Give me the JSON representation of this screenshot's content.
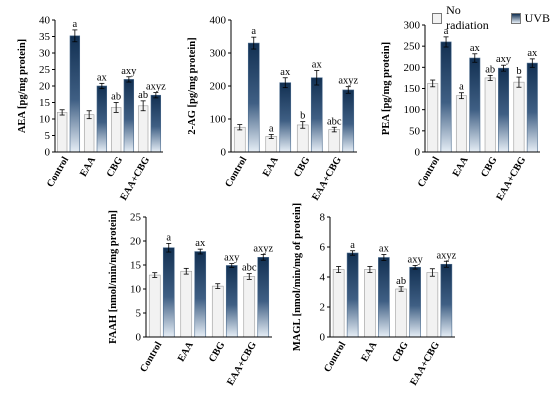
{
  "legend": {
    "items": [
      {
        "label": "No radiation",
        "color": "#f2f2f2"
      },
      {
        "label": "UVB",
        "color": "#1f3a5f"
      }
    ]
  },
  "colors": {
    "no_radiation": "#f2f2f2",
    "uvb_top": "#123052",
    "uvb_bottom": "#e6eef6",
    "axis": "#000000"
  },
  "chart_data": [
    {
      "type": "bar",
      "ylabel": "AEA [pg/mg protein]",
      "categories": [
        "Control",
        "EAA",
        "CBG",
        "EAA+CBG"
      ],
      "ylim": [
        0,
        40
      ],
      "yticks": [
        0,
        5,
        10,
        15,
        20,
        25,
        30,
        35,
        40
      ],
      "series": [
        {
          "name": "No radiation",
          "values": [
            12,
            11.3,
            13.5,
            14
          ],
          "errors": [
            0.8,
            1.2,
            1.5,
            1.5
          ],
          "labels": [
            "",
            "",
            "ab",
            "ab"
          ]
        },
        {
          "name": "UVB",
          "values": [
            35.2,
            20,
            22,
            17.2
          ],
          "errors": [
            1.8,
            0.8,
            0.8,
            0.8
          ],
          "labels": [
            "a",
            "ax",
            "axy",
            "axyz"
          ]
        }
      ]
    },
    {
      "type": "bar",
      "ylabel": "2-AG [pg/mg protein]",
      "categories": [
        "Control",
        "EAA",
        "CBG",
        "EAA+CBG"
      ],
      "ylim": [
        0,
        400
      ],
      "yticks": [
        0,
        100,
        200,
        300,
        400
      ],
      "series": [
        {
          "name": "No radiation",
          "values": [
            75,
            47,
            82,
            68
          ],
          "errors": [
            8,
            6,
            10,
            7
          ],
          "labels": [
            "",
            "a",
            "b",
            "abc"
          ]
        },
        {
          "name": "UVB",
          "values": [
            330,
            210,
            225,
            188
          ],
          "errors": [
            18,
            15,
            22,
            10
          ],
          "labels": [
            "a",
            "ax",
            "ax",
            "axyz"
          ]
        }
      ]
    },
    {
      "type": "bar",
      "ylabel": "PEA [pg/mg protein]",
      "categories": [
        "Control",
        "EAA",
        "CBG",
        "EAA+CBG"
      ],
      "ylim": [
        0,
        300
      ],
      "yticks": [
        0,
        50,
        100,
        150,
        200,
        250,
        300
      ],
      "series": [
        {
          "name": "No radiation",
          "values": [
            162,
            133,
            175,
            165
          ],
          "errors": [
            8,
            7,
            6,
            12
          ],
          "labels": [
            "",
            "a",
            "ab",
            "b"
          ]
        },
        {
          "name": "UVB",
          "values": [
            260,
            222,
            198,
            210
          ],
          "errors": [
            12,
            10,
            7,
            10
          ],
          "labels": [
            "a",
            "ax",
            "axy",
            "ax"
          ]
        }
      ]
    },
    {
      "type": "bar",
      "ylabel": "FAAH [nmol/min/mg protein]",
      "categories": [
        "Control",
        "EAA",
        "CBG",
        "EAA+CBG"
      ],
      "ylim": [
        0,
        25
      ],
      "yticks": [
        0,
        5,
        10,
        15,
        20,
        25
      ],
      "series": [
        {
          "name": "No radiation",
          "values": [
            12.9,
            13.7,
            10.6,
            12.6
          ],
          "errors": [
            0.5,
            0.6,
            0.5,
            0.6
          ],
          "labels": [
            "",
            "",
            "",
            "abc"
          ]
        },
        {
          "name": "UVB",
          "values": [
            18.6,
            17.8,
            14.9,
            16.6
          ],
          "errors": [
            0.9,
            0.5,
            0.4,
            0.6
          ],
          "labels": [
            "a",
            "ax",
            "axy",
            "axyz"
          ]
        }
      ]
    },
    {
      "type": "bar",
      "ylabel": "MAGL [nmol/min/mg of protein]",
      "categories": [
        "Control",
        "EAA",
        "CBG",
        "EAA+CBG"
      ],
      "ylim": [
        0,
        8
      ],
      "yticks": [
        0,
        2,
        4,
        6,
        8
      ],
      "series": [
        {
          "name": "No radiation",
          "values": [
            4.5,
            4.5,
            3.2,
            4.3
          ],
          "errors": [
            0.2,
            0.2,
            0.15,
            0.25
          ],
          "labels": [
            "",
            "",
            "ab",
            ""
          ]
        },
        {
          "name": "UVB",
          "values": [
            5.6,
            5.3,
            4.65,
            4.85
          ],
          "errors": [
            0.15,
            0.2,
            0.12,
            0.2
          ],
          "labels": [
            "a",
            "ax",
            "axy",
            "axyz"
          ]
        }
      ]
    }
  ]
}
